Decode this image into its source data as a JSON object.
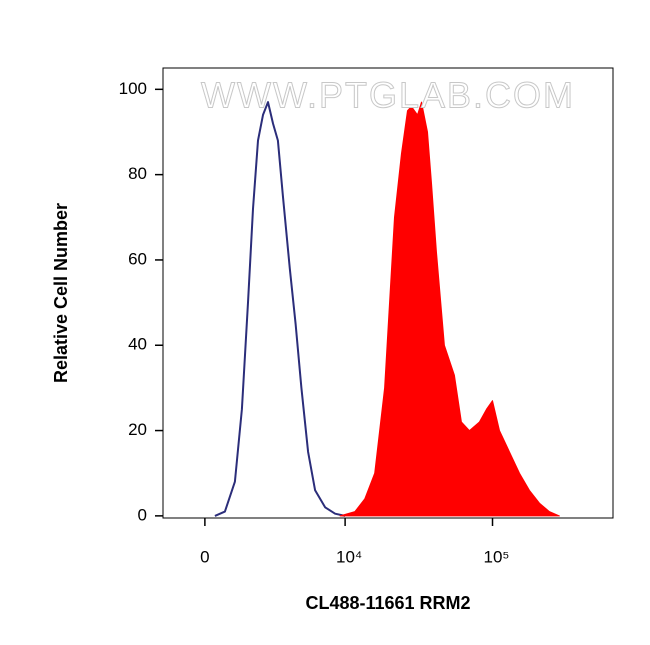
{
  "chart_data": {
    "type": "histogram-overlay",
    "watermark": "WWW.PTGLAB.COM",
    "x_label": "CL488-11661 RRM2",
    "y_label": "Relative Cell Number",
    "xscale": "biexponential",
    "xlim": [
      -1600,
      650000
    ],
    "xticks": [
      0,
      {
        "value": 10000,
        "label": "10⁴"
      },
      {
        "value": 100000,
        "label": "10⁵"
      }
    ],
    "ylim": [
      -0.5,
      105
    ],
    "yticks": [
      0,
      20,
      40,
      60,
      80,
      100
    ],
    "series": [
      {
        "color": "#2b2d7a",
        "filled": false,
        "x": [
          359,
          725,
          1110,
          1395,
          1652,
          1877,
          2117,
          2363,
          2629,
          2907,
          3200,
          3510,
          3980,
          4414,
          4882,
          5467,
          6148,
          7243,
          8520,
          10000
        ],
        "values": [
          0,
          1,
          8,
          25,
          50,
          72,
          88,
          94,
          97,
          92,
          88,
          75,
          58,
          45,
          30,
          15,
          6,
          2,
          0.5,
          0
        ]
      },
      {
        "color": "#ff0000",
        "filled": true,
        "x": [
          9236,
          11690,
          13650,
          15950,
          18640,
          21770,
          24280,
          26650,
          28340,
          31130,
          33140,
          36380,
          38710,
          41830,
          47370,
          55300,
          61660,
          69850,
          81570,
          91080,
          100000,
          111500,
          130200,
          152000,
          177500,
          207300,
          242000,
          282600
        ],
        "values": [
          0,
          1,
          4,
          10,
          30,
          70,
          85,
          95,
          96,
          94,
          97,
          90,
          78,
          62,
          40,
          33,
          22,
          20,
          22,
          25,
          27,
          20,
          15,
          10,
          6,
          3,
          1,
          0
        ]
      }
    ]
  }
}
